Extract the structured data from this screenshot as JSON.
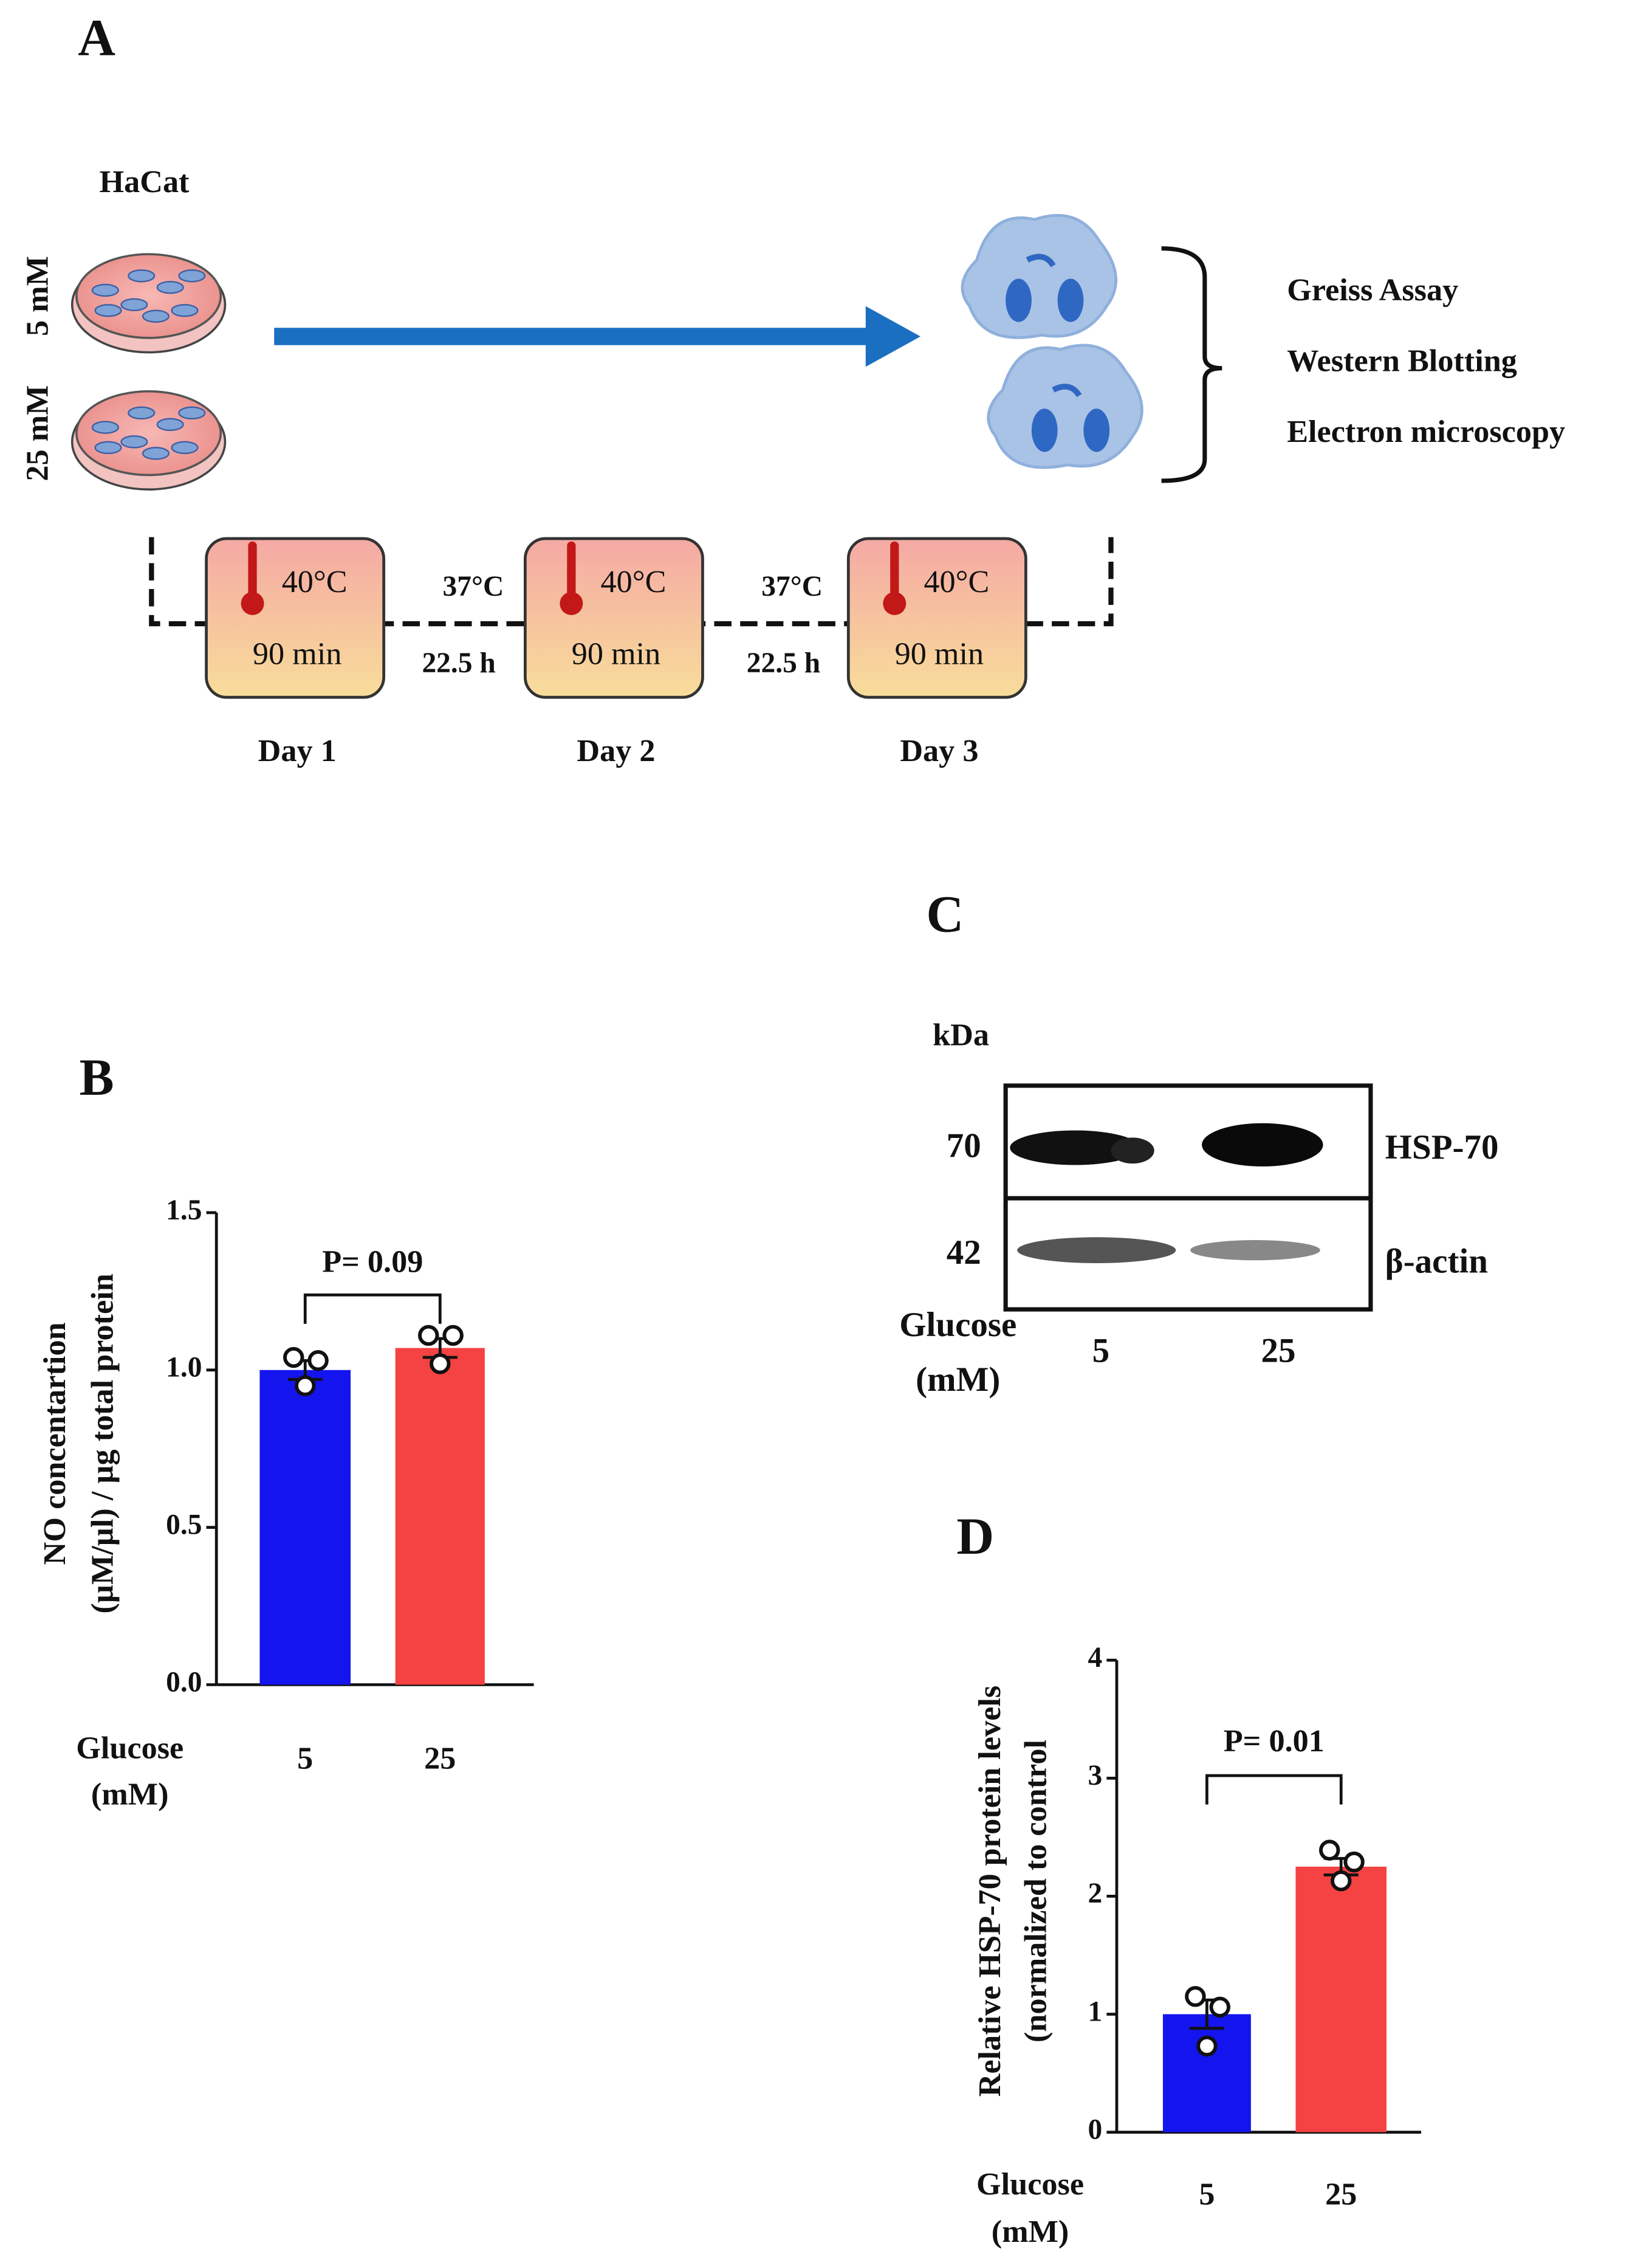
{
  "panels": {
    "a": "A",
    "b": "B",
    "c": "C",
    "d": "D"
  },
  "diagram": {
    "cell_line": "HaCat",
    "conditions": [
      "5 mM",
      "25 mM"
    ],
    "outputs": [
      "Greiss Assay",
      "Western Blotting",
      "Electron microscopy"
    ],
    "days": [
      {
        "temp": "40°C",
        "time": "90 min",
        "label": "Day 1"
      },
      {
        "temp": "40°C",
        "time": "90 min",
        "label": "Day 2"
      },
      {
        "temp": "40°C",
        "time": "90 min",
        "label": "Day 3"
      }
    ],
    "intervals": [
      {
        "temp": "37°C",
        "time": "22.5 h"
      },
      {
        "temp": "37°C",
        "time": "22.5 h"
      }
    ]
  },
  "blot": {
    "unit": "kDa",
    "rows": [
      {
        "kda": "70",
        "label": "HSP-70"
      },
      {
        "kda": "42",
        "label": "β-actin"
      }
    ],
    "xlabel": [
      "Glucose",
      "(mM)"
    ],
    "lanes": [
      "5",
      "25"
    ]
  },
  "chart_data": [
    {
      "type": "bar",
      "ylabel": [
        "NO concentartion",
        "(µM/µl) / µg total protein"
      ],
      "xlabel": [
        "Glucose",
        "(mM)"
      ],
      "categories": [
        "5",
        "25"
      ],
      "values": [
        1.0,
        1.07
      ],
      "errors": [
        0.03,
        0.03
      ],
      "points": [
        [
          1.04,
          1.03,
          0.95
        ],
        [
          1.11,
          1.11,
          1.02
        ]
      ],
      "colors": [
        "#1414ee",
        "#f54242"
      ],
      "ylim": [
        0,
        1.5
      ],
      "yticks": [
        {
          "value": 0,
          "label": "0.0"
        },
        0.5,
        {
          "value": 1,
          "label": "1.0"
        },
        1.5
      ],
      "annotation": "P= 0.09"
    },
    {
      "type": "bar",
      "ylabel": [
        "Relative HSP-70 protein levels",
        "(normalized to control"
      ],
      "xlabel": [
        "Glucose",
        "(mM)"
      ],
      "categories": [
        "5",
        "25"
      ],
      "values": [
        1.0,
        2.25
      ],
      "errors": [
        0.12,
        0.07
      ],
      "points": [
        [
          1.15,
          1.06,
          0.73
        ],
        [
          2.39,
          2.29,
          2.13
        ]
      ],
      "colors": [
        "#1414ee",
        "#f54242"
      ],
      "ylim": [
        0,
        4
      ],
      "yticks": [
        0,
        1,
        2,
        3,
        4
      ],
      "annotation": "P= 0.01"
    }
  ]
}
